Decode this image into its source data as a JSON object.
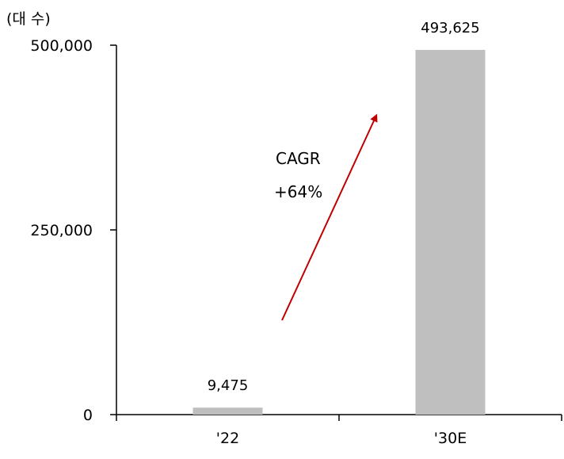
{
  "chart_data": {
    "type": "bar",
    "unit_label": "(대 수)",
    "categories": [
      "'22",
      "'30E"
    ],
    "values": [
      9475,
      493625
    ],
    "data_labels": [
      "9,475",
      "493,625"
    ],
    "ylim": [
      0,
      500000
    ],
    "yticks": [
      0,
      250000,
      500000
    ],
    "ytick_labels": [
      "0",
      "250,000",
      "500,000"
    ],
    "grid": false,
    "legend": "none",
    "bar_color": "#bfbfbf",
    "arrow_color": "#c00000",
    "annotation": {
      "line1": "CAGR",
      "line2": "+64%"
    }
  }
}
